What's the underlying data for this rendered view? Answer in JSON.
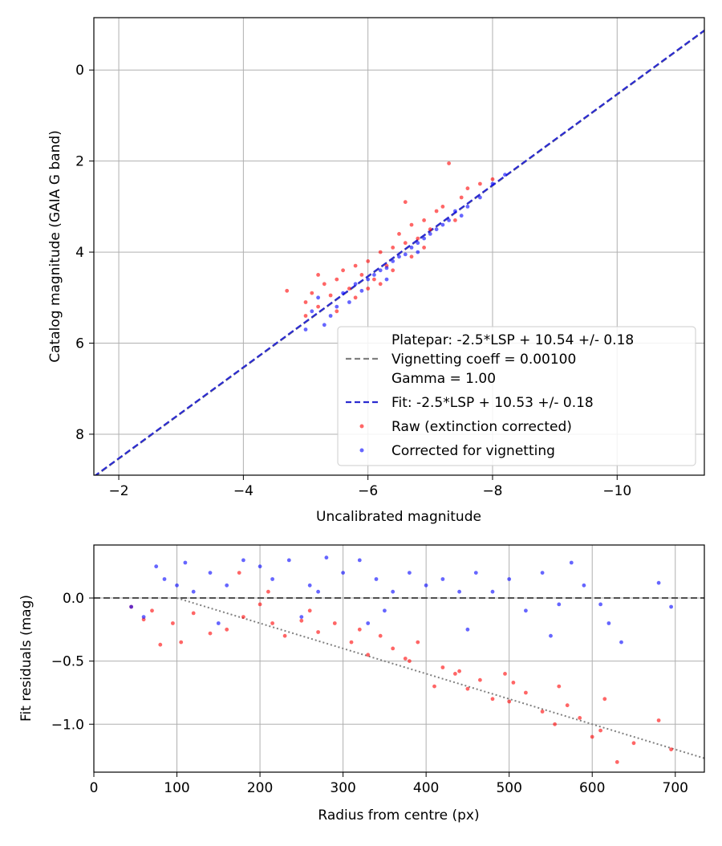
{
  "chart_data": [
    {
      "type": "scatter",
      "xlabel": "Uncalibrated magnitude",
      "ylabel": "Catalog magnitude (GAIA G band)",
      "xlim": [
        -1.6,
        -11.4
      ],
      "ylim": [
        8.9,
        -1.15
      ],
      "x_inverted": true,
      "y_inverted": true,
      "xticks": [
        -2,
        -4,
        -6,
        -8,
        -10
      ],
      "xtick_labels": [
        "−2",
        "−4",
        "−6",
        "−8",
        "−10"
      ],
      "yticks": [
        0,
        2,
        4,
        6,
        8
      ],
      "ytick_labels": [
        "0",
        "2",
        "4",
        "6",
        "8"
      ],
      "grid": true,
      "legend_position": "lower-right",
      "legend": [
        "Platepar: -2.5*LSP + 10.54 +/- 0.18",
        "Vignetting coeff = 0.00100",
        "Gamma = 1.00",
        "Fit: -2.5*LSP + 10.53 +/- 0.18",
        "Raw (extinction corrected)",
        "Corrected for vignetting"
      ],
      "colors": {
        "raw": "#ff0000",
        "corrected": "#0000ff",
        "fit": "#2b2bd0",
        "platepar": "#808080"
      },
      "lines": [
        {
          "name": "Platepar: -2.5*LSP + 10.54 +/- 0.18",
          "style": "dashed",
          "points": [
            [
              -1.6,
              8.94
            ],
            [
              -11.4,
              -0.86
            ]
          ]
        },
        {
          "name": "Fit: -2.5*LSP + 10.53 +/- 0.18",
          "style": "dashed",
          "points": [
            [
              -1.6,
              8.93
            ],
            [
              -11.4,
              -0.87
            ]
          ]
        }
      ],
      "series": [
        {
          "name": "Raw (extinction corrected)",
          "points": [
            [
              -5.0,
              5.1
            ],
            [
              -5.1,
              4.9
            ],
            [
              -5.2,
              5.2
            ],
            [
              -5.3,
              4.7
            ],
            [
              -5.4,
              4.95
            ],
            [
              -5.5,
              4.6
            ],
            [
              -5.6,
              4.4
            ],
            [
              -5.7,
              4.8
            ],
            [
              -5.8,
              4.3
            ],
            [
              -5.9,
              4.5
            ],
            [
              -6.0,
              4.2
            ],
            [
              -6.1,
              4.6
            ],
            [
              -6.2,
              4.0
            ],
            [
              -6.3,
              4.3
            ],
            [
              -6.4,
              3.9
            ],
            [
              -6.5,
              3.6
            ],
            [
              -6.6,
              3.8
            ],
            [
              -6.7,
              3.4
            ],
            [
              -6.8,
              3.7
            ],
            [
              -6.9,
              3.3
            ],
            [
              -7.0,
              3.5
            ],
            [
              -7.1,
              3.1
            ],
            [
              -7.2,
              3.0
            ],
            [
              -7.4,
              3.3
            ],
            [
              -7.5,
              2.8
            ],
            [
              -7.6,
              2.6
            ],
            [
              -7.8,
              2.5
            ],
            [
              -8.0,
              2.4
            ],
            [
              -7.3,
              2.05
            ],
            [
              -6.6,
              2.9
            ],
            [
              -4.7,
              4.85
            ],
            [
              -5.0,
              5.4
            ],
            [
              -5.5,
              5.3
            ],
            [
              -6.0,
              4.8
            ],
            [
              -5.8,
              5.0
            ],
            [
              -6.4,
              4.4
            ],
            [
              -6.9,
              3.9
            ],
            [
              -6.2,
              4.7
            ],
            [
              -5.2,
              4.5
            ],
            [
              -6.7,
              4.1
            ]
          ]
        },
        {
          "name": "Corrected for vignetting",
          "points": [
            [
              -5.1,
              5.3
            ],
            [
              -5.2,
              5.0
            ],
            [
              -5.4,
              5.4
            ],
            [
              -5.5,
              5.2
            ],
            [
              -5.6,
              4.9
            ],
            [
              -5.7,
              5.1
            ],
            [
              -5.8,
              4.7
            ],
            [
              -5.9,
              4.85
            ],
            [
              -6.0,
              4.6
            ],
            [
              -6.1,
              4.5
            ],
            [
              -6.2,
              4.4
            ],
            [
              -6.3,
              4.35
            ],
            [
              -6.4,
              4.2
            ],
            [
              -6.5,
              4.1
            ],
            [
              -6.6,
              4.05
            ],
            [
              -6.7,
              3.9
            ],
            [
              -6.8,
              3.8
            ],
            [
              -6.9,
              3.7
            ],
            [
              -7.0,
              3.6
            ],
            [
              -7.1,
              3.5
            ],
            [
              -7.2,
              3.4
            ],
            [
              -7.3,
              3.3
            ],
            [
              -7.5,
              3.2
            ],
            [
              -7.6,
              3.0
            ],
            [
              -7.8,
              2.8
            ],
            [
              -8.0,
              2.5
            ],
            [
              -8.2,
              2.3
            ],
            [
              -5.3,
              5.6
            ],
            [
              -5.0,
              5.7
            ],
            [
              -6.3,
              4.6
            ],
            [
              -6.8,
              4.0
            ],
            [
              -7.4,
              3.1
            ]
          ]
        }
      ]
    },
    {
      "type": "scatter",
      "xlabel": "Radius from centre (px)",
      "ylabel": "Fit residuals (mag)",
      "xlim": [
        0,
        735
      ],
      "ylim": [
        -1.38,
        0.42
      ],
      "xticks": [
        0,
        100,
        200,
        300,
        400,
        500,
        600,
        700
      ],
      "xtick_labels": [
        "0",
        "100",
        "200",
        "300",
        "400",
        "500",
        "600",
        "700"
      ],
      "yticks": [
        0.0,
        -0.5,
        -1.0
      ],
      "ytick_labels": [
        "0.0",
        "−0.5",
        "−1.0"
      ],
      "grid": true,
      "colors": {
        "raw": "#ff0000",
        "corrected": "#0000ff"
      },
      "lines": [
        {
          "style": "dashed",
          "color": "#505050",
          "points": [
            [
              0,
              0.0
            ],
            [
              735,
              0.0
            ]
          ]
        },
        {
          "style": "dotted",
          "color": "#808080",
          "points": [
            [
              100,
              0.0
            ],
            [
              735,
              -1.27
            ]
          ]
        }
      ],
      "series": [
        {
          "name": "Raw (extinction corrected)",
          "points": [
            [
              45,
              -0.07
            ],
            [
              60,
              -0.17
            ],
            [
              70,
              -0.1
            ],
            [
              80,
              -0.37
            ],
            [
              95,
              -0.2
            ],
            [
              105,
              -0.35
            ],
            [
              120,
              -0.12
            ],
            [
              140,
              -0.28
            ],
            [
              160,
              -0.25
            ],
            [
              180,
              -0.15
            ],
            [
              200,
              -0.05
            ],
            [
              215,
              -0.2
            ],
            [
              230,
              -0.3
            ],
            [
              250,
              -0.18
            ],
            [
              270,
              -0.27
            ],
            [
              290,
              -0.2
            ],
            [
              310,
              -0.35
            ],
            [
              330,
              -0.45
            ],
            [
              345,
              -0.3
            ],
            [
              360,
              -0.4
            ],
            [
              375,
              -0.48
            ],
            [
              390,
              -0.35
            ],
            [
              410,
              -0.7
            ],
            [
              420,
              -0.55
            ],
            [
              435,
              -0.6
            ],
            [
              450,
              -0.72
            ],
            [
              465,
              -0.65
            ],
            [
              480,
              -0.8
            ],
            [
              495,
              -0.6
            ],
            [
              505,
              -0.67
            ],
            [
              520,
              -0.75
            ],
            [
              540,
              -0.9
            ],
            [
              555,
              -1.0
            ],
            [
              570,
              -0.85
            ],
            [
              585,
              -0.95
            ],
            [
              600,
              -1.1
            ],
            [
              615,
              -0.8
            ],
            [
              630,
              -1.3
            ],
            [
              650,
              -1.15
            ],
            [
              680,
              -0.97
            ],
            [
              695,
              -1.2
            ],
            [
              175,
              0.2
            ],
            [
              210,
              0.05
            ],
            [
              260,
              -0.1
            ],
            [
              320,
              -0.25
            ],
            [
              380,
              -0.5
            ],
            [
              440,
              -0.58
            ],
            [
              500,
              -0.82
            ],
            [
              560,
              -0.7
            ],
            [
              610,
              -1.05
            ]
          ]
        },
        {
          "name": "Corrected for vignetting",
          "points": [
            [
              45,
              -0.07
            ],
            [
              60,
              -0.15
            ],
            [
              75,
              0.25
            ],
            [
              85,
              0.15
            ],
            [
              100,
              0.1
            ],
            [
              110,
              0.28
            ],
            [
              120,
              0.05
            ],
            [
              140,
              0.2
            ],
            [
              160,
              0.1
            ],
            [
              180,
              0.3
            ],
            [
              200,
              0.25
            ],
            [
              215,
              0.15
            ],
            [
              235,
              0.3
            ],
            [
              260,
              0.1
            ],
            [
              280,
              0.32
            ],
            [
              300,
              0.2
            ],
            [
              320,
              0.3
            ],
            [
              340,
              0.15
            ],
            [
              360,
              0.05
            ],
            [
              380,
              0.2
            ],
            [
              400,
              0.1
            ],
            [
              420,
              0.15
            ],
            [
              440,
              0.05
            ],
            [
              460,
              0.2
            ],
            [
              480,
              0.05
            ],
            [
              500,
              0.15
            ],
            [
              520,
              -0.1
            ],
            [
              540,
              0.2
            ],
            [
              560,
              -0.05
            ],
            [
              575,
              0.28
            ],
            [
              590,
              0.1
            ],
            [
              610,
              -0.05
            ],
            [
              635,
              -0.35
            ],
            [
              680,
              0.12
            ],
            [
              695,
              -0.07
            ],
            [
              150,
              -0.2
            ],
            [
              250,
              -0.15
            ],
            [
              350,
              -0.1
            ],
            [
              450,
              -0.25
            ],
            [
              550,
              -0.3
            ],
            [
              620,
              -0.2
            ],
            [
              270,
              0.05
            ],
            [
              330,
              -0.2
            ]
          ]
        }
      ]
    }
  ]
}
